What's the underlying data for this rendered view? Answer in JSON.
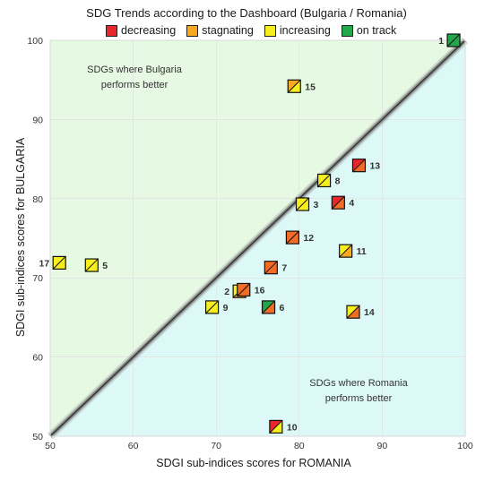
{
  "chart_data": {
    "type": "scatter",
    "title": "SDG Trends according to the Dashboard (Bulgaria / Romania)",
    "xlabel": "SDGI sub-indices scores for ROMANIA",
    "ylabel": "SDGI sub-indices scores for BULGARIA",
    "xlim": [
      50,
      100
    ],
    "ylim": [
      50,
      100
    ],
    "xticks": [
      50,
      60,
      70,
      80,
      90,
      100
    ],
    "yticks": [
      50,
      60,
      70,
      80,
      90,
      100
    ],
    "grid": true,
    "legend_position": "top",
    "legend": [
      {
        "key": "decreasing",
        "label": "decreasing",
        "color": "#e8262b"
      },
      {
        "key": "stagnating",
        "label": "stagnating",
        "color": "#f9a81f"
      },
      {
        "key": "increasing",
        "label": "increasing",
        "color": "#f7ee1e"
      },
      {
        "key": "on_track",
        "label": "on track",
        "color": "#22a84a"
      }
    ],
    "regions": [
      {
        "label_lines": [
          "SDGs where Bulgaria",
          "performs better"
        ],
        "fill": "#e6f9e2"
      },
      {
        "label_lines": [
          "SDGs where Romania",
          "performs better"
        ],
        "fill": "#dcf9f7"
      }
    ],
    "points": [
      {
        "label": "1",
        "x": 98.6,
        "y": 100.0,
        "trend": "on_track",
        "status_colors": [
          "#22a84a",
          "#22a84a"
        ]
      },
      {
        "label": "2",
        "x": 72.8,
        "y": 68.3,
        "trend": "increasing",
        "status_colors": [
          "#f7ee1e",
          "#f9a81f"
        ]
      },
      {
        "label": "3",
        "x": 80.4,
        "y": 79.3,
        "trend": "increasing",
        "status_colors": [
          "#f7ee1e",
          "#f7ee1e"
        ]
      },
      {
        "label": "4",
        "x": 84.7,
        "y": 79.5,
        "trend": "decreasing",
        "status_colors": [
          "#e8262b",
          "#f36c26"
        ]
      },
      {
        "label": "5",
        "x": 55.0,
        "y": 71.6,
        "trend": "increasing",
        "status_colors": [
          "#f7ee1e",
          "#f7ee1e"
        ]
      },
      {
        "label": "6",
        "x": 76.3,
        "y": 66.3,
        "trend": "on_track",
        "status_colors": [
          "#22a84a",
          "#f36c26"
        ]
      },
      {
        "label": "7",
        "x": 76.6,
        "y": 71.3,
        "trend": "stagnating",
        "status_colors": [
          "#f36c26",
          "#f36c26"
        ]
      },
      {
        "label": "8",
        "x": 83.0,
        "y": 82.3,
        "trend": "increasing",
        "status_colors": [
          "#f7ee1e",
          "#f7ee1e"
        ]
      },
      {
        "label": "9",
        "x": 69.5,
        "y": 66.3,
        "trend": "increasing",
        "status_colors": [
          "#f7ee1e",
          "#f7ee1e"
        ]
      },
      {
        "label": "10",
        "x": 77.2,
        "y": 51.2,
        "trend": "decreasing",
        "status_colors": [
          "#e8262b",
          "#f7ee1e"
        ]
      },
      {
        "label": "11",
        "x": 85.6,
        "y": 73.4,
        "trend": "increasing",
        "status_colors": [
          "#f7ee1e",
          "#f9a81f"
        ]
      },
      {
        "label": "12",
        "x": 79.2,
        "y": 75.1,
        "trend": "stagnating",
        "status_colors": [
          "#f36c26",
          "#f36c26"
        ]
      },
      {
        "label": "13",
        "x": 87.2,
        "y": 84.2,
        "trend": "decreasing",
        "status_colors": [
          "#e8262b",
          "#f36c26"
        ]
      },
      {
        "label": "14",
        "x": 86.5,
        "y": 65.7,
        "trend": "increasing",
        "status_colors": [
          "#f7ee1e",
          "#f36c26"
        ]
      },
      {
        "label": "15",
        "x": 79.4,
        "y": 94.2,
        "trend": "stagnating",
        "status_colors": [
          "#f9a81f",
          "#f7ee1e"
        ]
      },
      {
        "label": "16",
        "x": 73.3,
        "y": 68.5,
        "trend": "stagnating",
        "status_colors": [
          "#f36c26",
          "#f36c26"
        ]
      },
      {
        "label": "17",
        "x": 51.1,
        "y": 71.9,
        "trend": "increasing",
        "status_colors": [
          "#f7ee1e",
          "#f7ee1e"
        ]
      }
    ]
  }
}
